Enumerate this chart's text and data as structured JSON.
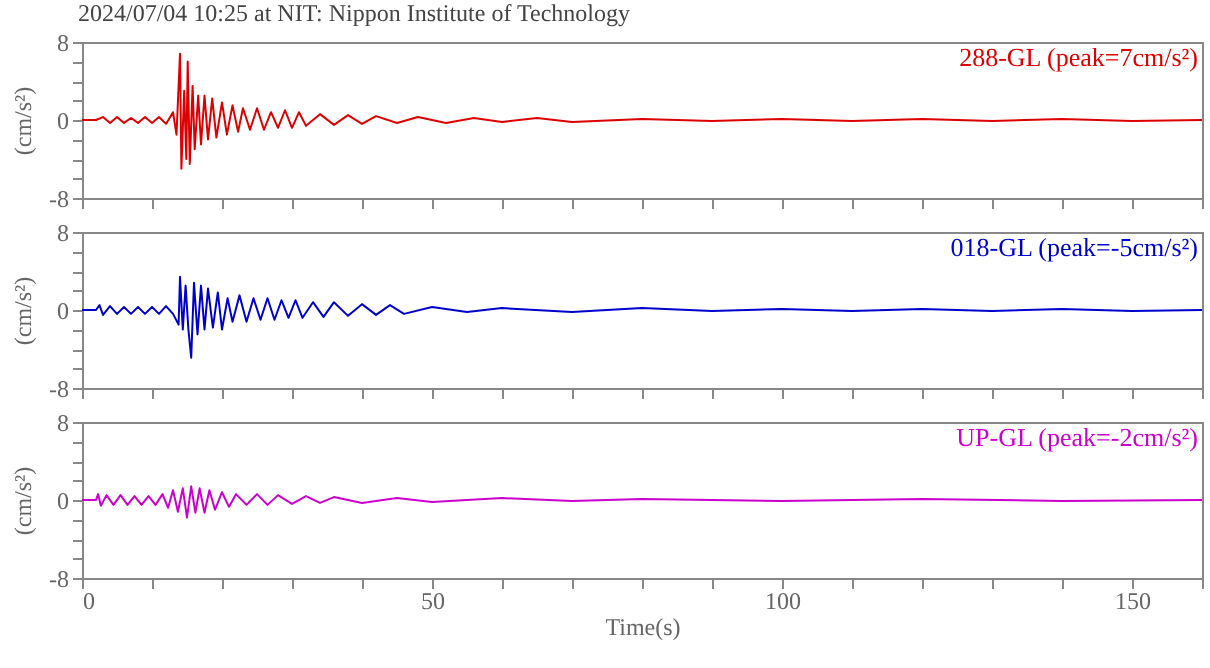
{
  "chart_data": [
    {
      "type": "line",
      "title": "2024/07/04 10:25 at NIT: Nippon Institute of Technology",
      "ylabel": "(cm/s²)",
      "tick_labels": "y",
      "xlim": [
        0,
        160
      ],
      "xticks": [
        0,
        {
          "value": 10,
          "label": null
        },
        {
          "value": 20,
          "label": null
        },
        {
          "value": 30,
          "label": null
        },
        {
          "value": 40,
          "label": null
        },
        50,
        {
          "value": 60,
          "label": null
        },
        {
          "value": 70,
          "label": null
        },
        {
          "value": 80,
          "label": null
        },
        {
          "value": 90,
          "label": null
        },
        100,
        {
          "value": 110,
          "label": null
        },
        {
          "value": 120,
          "label": null
        },
        {
          "value": 130,
          "label": null
        },
        {
          "value": 140,
          "label": null
        },
        150,
        {
          "value": 160,
          "label": null
        }
      ],
      "ylim": [
        -8,
        8
      ],
      "yticks": [
        -8,
        {
          "value": -6,
          "label": null
        },
        {
          "value": -4,
          "label": null
        },
        {
          "value": -2,
          "label": null
        },
        0,
        {
          "value": 2,
          "label": null
        },
        {
          "value": 4,
          "label": null
        },
        {
          "value": 6,
          "label": null
        },
        8
      ],
      "x": [
        0,
        2,
        3,
        4,
        5,
        6,
        7,
        8,
        9,
        10,
        11,
        12,
        13,
        13.5,
        14,
        14.2,
        14.6,
        14.9,
        15.1,
        15.4,
        15.8,
        16.1,
        16.6,
        17,
        17.5,
        18,
        18.6,
        19.2,
        20,
        20.7,
        21.5,
        22.3,
        23,
        24,
        25,
        26,
        27,
        28,
        29,
        30,
        31,
        32,
        34,
        36,
        38,
        40,
        42,
        45,
        48,
        52,
        56,
        60,
        65,
        70,
        80,
        90,
        100,
        110,
        120,
        130,
        140,
        150,
        160
      ],
      "series": [
        {
          "name": "288-GL (peak=7cm/s²)",
          "color": "#dd0000",
          "values": [
            0,
            0,
            0.3,
            -0.3,
            0.3,
            -0.3,
            0.2,
            -0.3,
            0.3,
            -0.3,
            0.3,
            -0.4,
            0.8,
            -1.5,
            6.8,
            -5,
            3,
            -4,
            6,
            -4.5,
            3.5,
            -3,
            2.5,
            -2.5,
            2.5,
            -2,
            2.2,
            -1.8,
            1.8,
            -1.5,
            1.5,
            -1.2,
            1.2,
            -1,
            1.2,
            -1,
            0.8,
            -0.8,
            1,
            -0.8,
            0.8,
            -0.6,
            0.6,
            -0.5,
            0.5,
            -0.4,
            0.4,
            -0.3,
            0.3,
            -0.3,
            0.2,
            -0.2,
            0.2,
            -0.2,
            0.1,
            -0.1,
            0.1,
            -0.1,
            0.1,
            -0.1,
            0.1,
            -0.1,
            0
          ]
        }
      ]
    },
    {
      "type": "line",
      "ylabel": "(cm/s²)",
      "tick_labels": "y",
      "xlim": [
        0,
        160
      ],
      "xticks": [
        0,
        {
          "value": 10,
          "label": null
        },
        {
          "value": 20,
          "label": null
        },
        {
          "value": 30,
          "label": null
        },
        {
          "value": 40,
          "label": null
        },
        50,
        {
          "value": 60,
          "label": null
        },
        {
          "value": 70,
          "label": null
        },
        {
          "value": 80,
          "label": null
        },
        {
          "value": 90,
          "label": null
        },
        100,
        {
          "value": 110,
          "label": null
        },
        {
          "value": 120,
          "label": null
        },
        {
          "value": 130,
          "label": null
        },
        {
          "value": 140,
          "label": null
        },
        150,
        {
          "value": 160,
          "label": null
        }
      ],
      "ylim": [
        -8,
        8
      ],
      "yticks": [
        -8,
        {
          "value": -6,
          "label": null
        },
        {
          "value": -4,
          "label": null
        },
        {
          "value": -2,
          "label": null
        },
        0,
        {
          "value": 2,
          "label": null
        },
        {
          "value": 4,
          "label": null
        },
        {
          "value": 6,
          "label": null
        },
        8
      ],
      "x": [
        0,
        2,
        2.5,
        3,
        4,
        5,
        6,
        7,
        8,
        9,
        10,
        11,
        12,
        13,
        13.8,
        14,
        14.4,
        14.8,
        15.2,
        15.6,
        16,
        16.5,
        17,
        17.5,
        18,
        18.7,
        19.4,
        20,
        20.8,
        21.5,
        22.5,
        23.5,
        24.5,
        25.5,
        26.5,
        27.5,
        28.5,
        29.5,
        30.5,
        31.5,
        33,
        34.5,
        36,
        38,
        40,
        42,
        44,
        46,
        50,
        55,
        60,
        70,
        80,
        90,
        100,
        110,
        120,
        130,
        140,
        150,
        160
      ],
      "series": [
        {
          "name": "018-GL (peak=-5cm/s²)",
          "color": "#0000cc",
          "values": [
            0,
            0,
            0.5,
            -0.5,
            0.4,
            -0.4,
            0.3,
            -0.4,
            0.3,
            -0.4,
            0.3,
            -0.4,
            0.4,
            -0.4,
            -1.5,
            3.4,
            -2,
            2.5,
            -2,
            -4.9,
            2.8,
            -2.5,
            2.5,
            -2,
            2.2,
            -1.8,
            1.8,
            -2,
            1.2,
            -1.2,
            1.5,
            -1.2,
            1.2,
            -1,
            1.2,
            -1,
            1,
            -0.8,
            1,
            -0.8,
            0.8,
            -0.7,
            0.8,
            -0.6,
            0.6,
            -0.5,
            0.5,
            -0.4,
            0.3,
            -0.2,
            0.2,
            -0.2,
            0.2,
            -0.1,
            0.1,
            -0.1,
            0.1,
            -0.1,
            0.1,
            -0.1,
            0
          ]
        }
      ]
    },
    {
      "type": "line",
      "xlabel": "Time(s)",
      "ylabel": "(cm/s²)",
      "xlim": [
        0,
        160
      ],
      "xticks": [
        0,
        {
          "value": 10,
          "label": null
        },
        {
          "value": 20,
          "label": null
        },
        {
          "value": 30,
          "label": null
        },
        {
          "value": 40,
          "label": null
        },
        50,
        {
          "value": 60,
          "label": null
        },
        {
          "value": 70,
          "label": null
        },
        {
          "value": 80,
          "label": null
        },
        {
          "value": 90,
          "label": null
        },
        100,
        {
          "value": 110,
          "label": null
        },
        {
          "value": 120,
          "label": null
        },
        {
          "value": 130,
          "label": null
        },
        {
          "value": 140,
          "label": null
        },
        150,
        {
          "value": 160,
          "label": null
        }
      ],
      "ylim": [
        -8,
        8
      ],
      "yticks": [
        -8,
        {
          "value": -6,
          "label": null
        },
        {
          "value": -4,
          "label": null
        },
        {
          "value": -2,
          "label": null
        },
        0,
        {
          "value": 2,
          "label": null
        },
        {
          "value": 4,
          "label": null
        },
        {
          "value": 6,
          "label": null
        },
        8
      ],
      "x": [
        0,
        2,
        2.3,
        2.7,
        3.5,
        4.5,
        5.5,
        6.5,
        7.5,
        8.5,
        9.5,
        10.5,
        11.5,
        12.3,
        13,
        13.7,
        14.4,
        15,
        15.6,
        16.2,
        16.8,
        17.5,
        18.2,
        19,
        20,
        21,
        22,
        23.5,
        25,
        26.5,
        28,
        30,
        32,
        34,
        36,
        40,
        45,
        50,
        60,
        70,
        80,
        100,
        120,
        140,
        160
      ],
      "series": [
        {
          "name": "UP-GL (peak=-2cm/s²)",
          "color": "#cc00cc",
          "values": [
            0,
            0,
            0.6,
            -0.6,
            0.5,
            -0.5,
            0.5,
            -0.5,
            0.4,
            -0.5,
            0.4,
            -0.5,
            0.6,
            -0.8,
            1,
            -1.2,
            1.2,
            -1.8,
            1.4,
            -1.3,
            1.2,
            -1.3,
            1,
            -1,
            0.8,
            -0.7,
            0.6,
            -0.5,
            0.6,
            -0.5,
            0.5,
            -0.4,
            0.4,
            -0.3,
            0.3,
            -0.3,
            0.2,
            -0.2,
            0.2,
            -0.1,
            0.1,
            -0.1,
            0.1,
            -0.1,
            0
          ]
        }
      ]
    }
  ]
}
